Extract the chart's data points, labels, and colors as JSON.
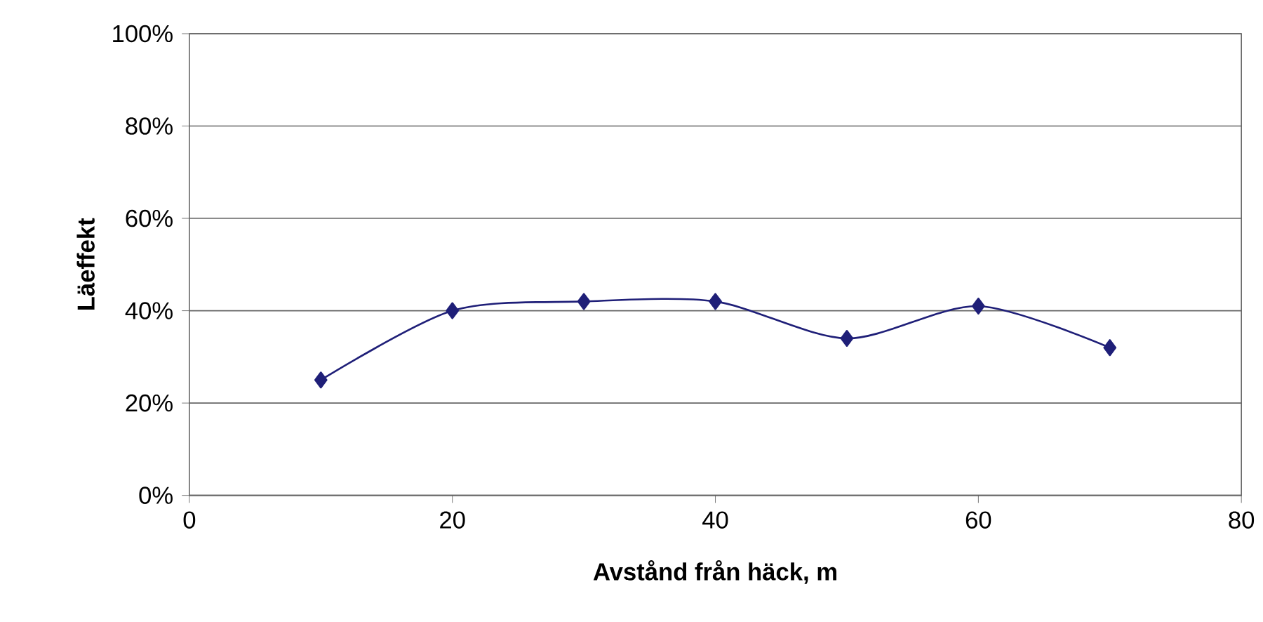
{
  "chart_data": {
    "type": "line",
    "xlabel": "Avstånd från häck, m",
    "ylabel": "Läeffekt",
    "x": [
      10,
      20,
      30,
      40,
      50,
      60,
      70
    ],
    "series": [
      {
        "color": "#1f1f78",
        "values": [
          25,
          40,
          42,
          42,
          34,
          41,
          32
        ]
      }
    ],
    "xlim": [
      0,
      80
    ],
    "xticks": [
      0,
      20,
      40,
      60,
      80
    ],
    "ylim": [
      0,
      100
    ],
    "yticks": [
      {
        "value": 0,
        "label": "0%"
      },
      {
        "value": 20,
        "label": "20%"
      },
      {
        "value": 40,
        "label": "40%"
      },
      {
        "value": 60,
        "label": "60%"
      },
      {
        "value": 80,
        "label": "80%"
      },
      {
        "value": 100,
        "label": "100%"
      }
    ],
    "grid": "y",
    "marker": "diamond",
    "line_style": "solid"
  }
}
